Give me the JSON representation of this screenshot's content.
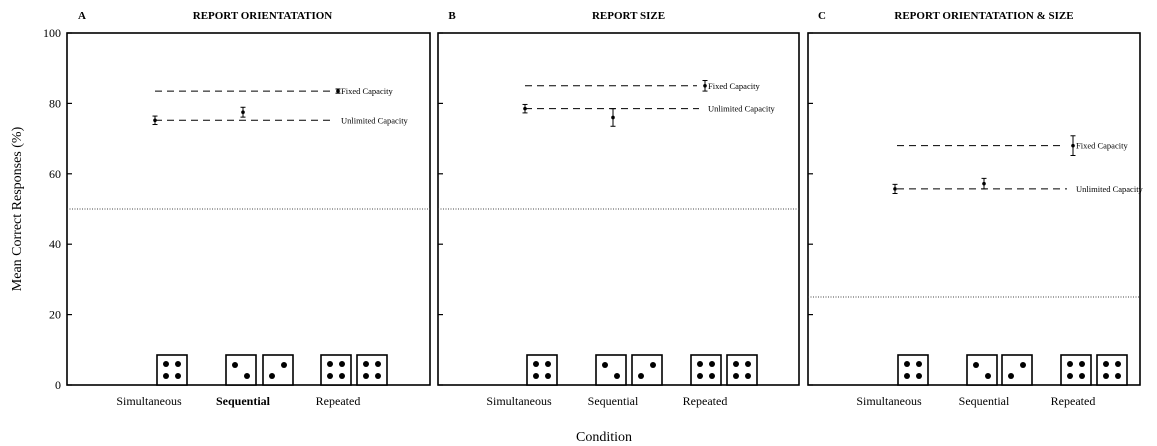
{
  "figure": {
    "ylabel": "Mean Correct Responses (%)",
    "xlabel": "Condition",
    "yticks": [
      0,
      20,
      40,
      60,
      80,
      100
    ]
  },
  "chart_data": [
    {
      "type": "scatter",
      "panel": "A",
      "title": "REPORT ORIENTATATION",
      "categories": [
        "Simultaneous",
        "Sequential",
        "Repeated"
      ],
      "bold_category": "Sequential",
      "ylim": [
        0,
        100
      ],
      "points": [
        {
          "category": "Simultaneous",
          "y": 75.2,
          "err": 1.2
        },
        {
          "category": "Sequential",
          "y": 77.5,
          "err": 1.4
        },
        {
          "category": "Repeated",
          "y": 83.5,
          "err": 0.6
        }
      ],
      "reference_lines": [
        {
          "label": "Fixed Capacity",
          "y": 83.5
        },
        {
          "label": "Unlimited Capacity",
          "y": 75.2
        }
      ],
      "chance_level": 50
    },
    {
      "type": "scatter",
      "panel": "B",
      "title": "REPORT SIZE",
      "categories": [
        "Simultaneous",
        "Sequential",
        "Repeated"
      ],
      "bold_category": "",
      "ylim": [
        0,
        100
      ],
      "points": [
        {
          "category": "Simultaneous",
          "y": 78.5,
          "err": 1.2
        },
        {
          "category": "Sequential",
          "y": 76.0,
          "err": 2.5
        },
        {
          "category": "Repeated",
          "y": 85.0,
          "err": 1.5
        }
      ],
      "reference_lines": [
        {
          "label": "Fixed Capacity",
          "y": 85.0
        },
        {
          "label": "Unlimited Capacity",
          "y": 78.5
        }
      ],
      "chance_level": 50
    },
    {
      "type": "scatter",
      "panel": "C",
      "title": "REPORT ORIENTATATION & SIZE",
      "categories": [
        "Simultaneous",
        "Sequential",
        "Repeated"
      ],
      "bold_category": "",
      "ylim": [
        0,
        100
      ],
      "points": [
        {
          "category": "Simultaneous",
          "y": 55.7,
          "err": 1.3
        },
        {
          "category": "Sequential",
          "y": 57.2,
          "err": 1.5
        },
        {
          "category": "Repeated",
          "y": 68.0,
          "err": 2.8
        }
      ],
      "reference_lines": [
        {
          "label": "Fixed Capacity",
          "y": 68.0
        },
        {
          "label": "Unlimited Capacity",
          "y": 55.7
        }
      ],
      "chance_level": 25
    }
  ]
}
